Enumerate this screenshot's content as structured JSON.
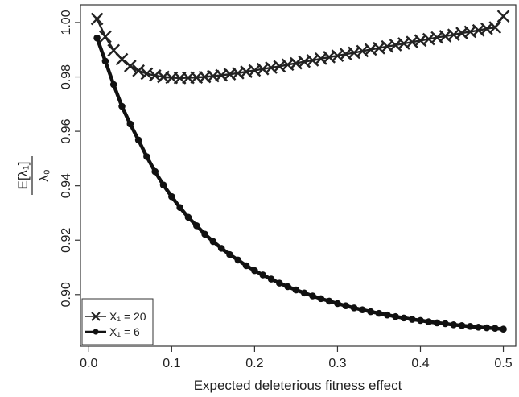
{
  "chart_data": {
    "type": "line",
    "xlabel": "Expected deleterious fitness effect",
    "ylabel": {
      "numerator": "E[λ₁]",
      "denominator": "λ₀"
    },
    "xlim": [
      -0.01,
      0.515
    ],
    "ylim": [
      0.881,
      1.0065
    ],
    "x_ticks": [
      0.0,
      0.1,
      0.2,
      0.3,
      0.4,
      0.5
    ],
    "x_tick_labels": [
      "0.0",
      "0.1",
      "0.2",
      "0.3",
      "0.4",
      "0.5"
    ],
    "y_ticks": [
      0.9,
      0.92,
      0.94,
      0.96,
      0.98,
      1.0
    ],
    "y_tick_labels": [
      "0.90",
      "0.92",
      "0.94",
      "0.96",
      "0.98",
      "1.00"
    ],
    "grid": false,
    "legend_position": "bottom-left",
    "series": [
      {
        "name": "X₁ = 20",
        "marker": "x",
        "color": "#222222",
        "x": [
          0.01,
          0.02,
          0.03,
          0.04,
          0.05,
          0.06,
          0.07,
          0.08,
          0.09,
          0.1,
          0.11,
          0.12,
          0.13,
          0.14,
          0.15,
          0.16,
          0.17,
          0.18,
          0.19,
          0.2,
          0.21,
          0.22,
          0.23,
          0.24,
          0.25,
          0.26,
          0.27,
          0.28,
          0.29,
          0.3,
          0.31,
          0.32,
          0.33,
          0.34,
          0.35,
          0.36,
          0.37,
          0.38,
          0.39,
          0.4,
          0.41,
          0.42,
          0.43,
          0.44,
          0.45,
          0.46,
          0.47,
          0.48,
          0.49,
          0.5
        ],
        "y": [
          1.0013,
          0.9948,
          0.9898,
          0.9865,
          0.984,
          0.9823,
          0.9812,
          0.9805,
          0.98,
          0.9797,
          0.9796,
          0.9797,
          0.9798,
          0.98,
          0.9803,
          0.9806,
          0.981,
          0.9814,
          0.9819,
          0.9824,
          0.9829,
          0.9834,
          0.9839,
          0.9845,
          0.985,
          0.9856,
          0.9861,
          0.9867,
          0.9873,
          0.9878,
          0.9884,
          0.9889,
          0.9895,
          0.9901,
          0.9906,
          0.9912,
          0.9917,
          0.9923,
          0.9928,
          0.9934,
          0.9939,
          0.9945,
          0.995,
          0.9955,
          0.9961,
          0.9966,
          0.9971,
          0.9977,
          0.9982,
          1.0023
        ]
      },
      {
        "name": "X₁ = 6",
        "marker": "dot",
        "color": "#111111",
        "x": [
          0.01,
          0.02,
          0.03,
          0.04,
          0.05,
          0.06,
          0.07,
          0.08,
          0.09,
          0.1,
          0.11,
          0.12,
          0.13,
          0.14,
          0.15,
          0.16,
          0.17,
          0.18,
          0.19,
          0.2,
          0.21,
          0.22,
          0.23,
          0.24,
          0.25,
          0.26,
          0.27,
          0.28,
          0.29,
          0.3,
          0.31,
          0.32,
          0.33,
          0.34,
          0.35,
          0.36,
          0.37,
          0.38,
          0.39,
          0.4,
          0.41,
          0.42,
          0.43,
          0.44,
          0.45,
          0.46,
          0.47,
          0.48,
          0.49,
          0.5
        ],
        "y": [
          0.9943,
          0.9858,
          0.9772,
          0.9692,
          0.9627,
          0.9568,
          0.9507,
          0.9452,
          0.9403,
          0.936,
          0.932,
          0.9284,
          0.9253,
          0.9222,
          0.9195,
          0.917,
          0.9147,
          0.9127,
          0.9106,
          0.9088,
          0.9072,
          0.9057,
          0.9042,
          0.9029,
          0.9017,
          0.9006,
          0.8995,
          0.8985,
          0.8976,
          0.8967,
          0.8959,
          0.8951,
          0.8944,
          0.8937,
          0.8931,
          0.8925,
          0.8919,
          0.8914,
          0.8909,
          0.8905,
          0.89,
          0.8896,
          0.8893,
          0.8889,
          0.8886,
          0.8883,
          0.888,
          0.8878,
          0.8876,
          0.8873
        ]
      }
    ]
  }
}
